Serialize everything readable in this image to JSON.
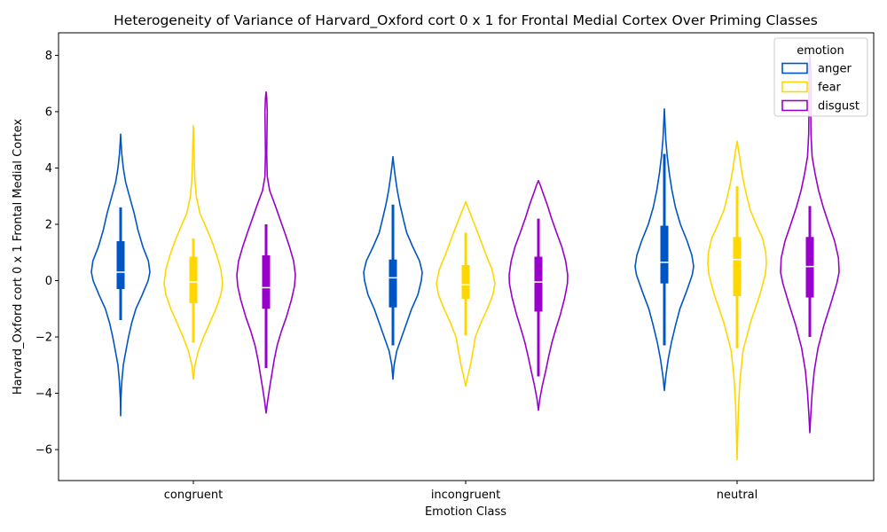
{
  "chart_data": {
    "type": "violin",
    "title": "Heterogeneity of Variance of Harvard_Oxford cort 0 x 1 for Frontal Medial Cortex Over Priming Classes",
    "xlabel": "Emotion Class",
    "ylabel": "Harvard_Oxford cort 0 x 1 Frontal Medial Cortex",
    "categories": [
      "congruent",
      "incongruent",
      "neutral"
    ],
    "ylim": [
      -7.1,
      8.8
    ],
    "yticks": [
      -6,
      -4,
      -2,
      0,
      2,
      4,
      6,
      8
    ],
    "ytick_labels": [
      "−6",
      "−4",
      "−2",
      "0",
      "2",
      "4",
      "6",
      "8"
    ],
    "grid": false,
    "legend": {
      "title": "emotion",
      "placement": "top-right",
      "entries": [
        "anger",
        "fear",
        "disgust"
      ]
    },
    "series": [
      {
        "name": "anger",
        "color": "#0055c4",
        "violins": [
          {
            "min": -4.8,
            "max": 5.2,
            "q1": -0.3,
            "median": 0.3,
            "q3": 1.4,
            "whisker_low": -1.4,
            "whisker_high": 2.6,
            "profile": [
              [
                -4.8,
                0.0
              ],
              [
                -4.2,
                0.01
              ],
              [
                -3.6,
                0.04
              ],
              [
                -3.0,
                0.09
              ],
              [
                -2.5,
                0.18
              ],
              [
                -2.0,
                0.27
              ],
              [
                -1.5,
                0.38
              ],
              [
                -1.0,
                0.52
              ],
              [
                -0.5,
                0.74
              ],
              [
                0.0,
                0.94
              ],
              [
                0.3,
                1.0
              ],
              [
                0.7,
                0.95
              ],
              [
                1.2,
                0.76
              ],
              [
                1.8,
                0.59
              ],
              [
                2.4,
                0.46
              ],
              [
                3.0,
                0.3
              ],
              [
                3.5,
                0.17
              ],
              [
                4.0,
                0.09
              ],
              [
                4.5,
                0.04
              ],
              [
                5.0,
                0.01
              ],
              [
                5.2,
                0.0
              ]
            ]
          },
          {
            "min": -3.5,
            "max": 4.4,
            "q1": -0.95,
            "median": 0.1,
            "q3": 0.75,
            "whisker_low": -2.3,
            "whisker_high": 2.7,
            "profile": [
              [
                -3.5,
                0.0
              ],
              [
                -3.0,
                0.04
              ],
              [
                -2.5,
                0.13
              ],
              [
                -2.0,
                0.3
              ],
              [
                -1.5,
                0.47
              ],
              [
                -1.0,
                0.64
              ],
              [
                -0.5,
                0.85
              ],
              [
                0.0,
                0.97
              ],
              [
                0.3,
                1.0
              ],
              [
                0.7,
                0.91
              ],
              [
                1.2,
                0.68
              ],
              [
                1.7,
                0.47
              ],
              [
                2.2,
                0.35
              ],
              [
                2.7,
                0.24
              ],
              [
                3.2,
                0.15
              ],
              [
                3.7,
                0.08
              ],
              [
                4.1,
                0.03
              ],
              [
                4.4,
                0.0
              ]
            ]
          },
          {
            "min": -3.9,
            "max": 6.1,
            "q1": -0.1,
            "median": 0.65,
            "q3": 1.95,
            "whisker_low": -2.3,
            "whisker_high": 4.5,
            "profile": [
              [
                -3.9,
                0.0
              ],
              [
                -3.4,
                0.05
              ],
              [
                -2.8,
                0.13
              ],
              [
                -2.2,
                0.24
              ],
              [
                -1.6,
                0.38
              ],
              [
                -1.0,
                0.53
              ],
              [
                -0.4,
                0.75
              ],
              [
                0.2,
                0.95
              ],
              [
                0.5,
                1.0
              ],
              [
                0.9,
                0.94
              ],
              [
                1.4,
                0.78
              ],
              [
                2.0,
                0.55
              ],
              [
                2.6,
                0.38
              ],
              [
                3.2,
                0.26
              ],
              [
                3.8,
                0.17
              ],
              [
                4.4,
                0.1
              ],
              [
                5.0,
                0.05
              ],
              [
                5.6,
                0.02
              ],
              [
                6.1,
                0.0
              ]
            ]
          }
        ]
      },
      {
        "name": "fear",
        "color": "#ffd700",
        "violins": [
          {
            "min": -3.5,
            "max": 5.5,
            "q1": -0.8,
            "median": -0.05,
            "q3": 0.85,
            "whisker_low": -2.2,
            "whisker_high": 1.5,
            "profile": [
              [
                -3.5,
                0.0
              ],
              [
                -3.0,
                0.05
              ],
              [
                -2.5,
                0.17
              ],
              [
                -2.0,
                0.35
              ],
              [
                -1.5,
                0.56
              ],
              [
                -1.0,
                0.77
              ],
              [
                -0.5,
                0.94
              ],
              [
                -0.1,
                1.0
              ],
              [
                0.4,
                0.94
              ],
              [
                0.9,
                0.8
              ],
              [
                1.4,
                0.63
              ],
              [
                1.9,
                0.43
              ],
              [
                2.4,
                0.22
              ],
              [
                3.0,
                0.1
              ],
              [
                3.6,
                0.05
              ],
              [
                4.2,
                0.03
              ],
              [
                4.8,
                0.02
              ],
              [
                5.2,
                0.01
              ],
              [
                5.5,
                0.0
              ]
            ]
          },
          {
            "min": -3.75,
            "max": 2.8,
            "q1": -0.65,
            "median": -0.15,
            "q3": 0.55,
            "whisker_low": -1.95,
            "whisker_high": 1.7,
            "profile": [
              [
                -3.75,
                0.0
              ],
              [
                -3.5,
                0.05
              ],
              [
                -3.0,
                0.16
              ],
              [
                -2.5,
                0.25
              ],
              [
                -2.0,
                0.33
              ],
              [
                -1.5,
                0.52
              ],
              [
                -1.0,
                0.74
              ],
              [
                -0.5,
                0.93
              ],
              [
                -0.1,
                1.0
              ],
              [
                0.4,
                0.9
              ],
              [
                0.9,
                0.7
              ],
              [
                1.4,
                0.52
              ],
              [
                1.9,
                0.34
              ],
              [
                2.4,
                0.15
              ],
              [
                2.8,
                0.0
              ]
            ]
          },
          {
            "min": -6.35,
            "max": 4.95,
            "q1": -0.55,
            "median": 0.75,
            "q3": 1.55,
            "whisker_low": -2.4,
            "whisker_high": 3.35,
            "profile": [
              [
                -6.35,
                0.0
              ],
              [
                -5.5,
                0.02
              ],
              [
                -4.5,
                0.05
              ],
              [
                -3.5,
                0.1
              ],
              [
                -2.5,
                0.2
              ],
              [
                -1.5,
                0.45
              ],
              [
                -0.5,
                0.78
              ],
              [
                0.2,
                0.96
              ],
              [
                0.6,
                1.0
              ],
              [
                1.0,
                0.98
              ],
              [
                1.5,
                0.87
              ],
              [
                2.0,
                0.65
              ],
              [
                2.5,
                0.45
              ],
              [
                3.0,
                0.33
              ],
              [
                3.5,
                0.22
              ],
              [
                4.0,
                0.14
              ],
              [
                4.5,
                0.07
              ],
              [
                4.95,
                0.0
              ]
            ]
          }
        ]
      },
      {
        "name": "disgust",
        "color": "#9900cc",
        "violins": [
          {
            "min": -4.7,
            "max": 6.7,
            "q1": -1.0,
            "median": -0.25,
            "q3": 0.9,
            "whisker_low": -3.1,
            "whisker_high": 2.0,
            "profile": [
              [
                -4.7,
                0.0
              ],
              [
                -4.3,
                0.05
              ],
              [
                -3.8,
                0.12
              ],
              [
                -3.3,
                0.2
              ],
              [
                -2.8,
                0.28
              ],
              [
                -2.3,
                0.38
              ],
              [
                -1.8,
                0.52
              ],
              [
                -1.3,
                0.69
              ],
              [
                -0.7,
                0.86
              ],
              [
                -0.2,
                0.97
              ],
              [
                0.2,
                1.0
              ],
              [
                0.7,
                0.94
              ],
              [
                1.2,
                0.8
              ],
              [
                1.7,
                0.64
              ],
              [
                2.2,
                0.47
              ],
              [
                2.7,
                0.3
              ],
              [
                3.2,
                0.12
              ],
              [
                3.7,
                0.04
              ],
              [
                4.5,
                0.02
              ],
              [
                5.3,
                0.03
              ],
              [
                6.0,
                0.04
              ],
              [
                6.5,
                0.02
              ],
              [
                6.7,
                0.0
              ]
            ]
          },
          {
            "min": -4.6,
            "max": 3.55,
            "q1": -1.1,
            "median": -0.05,
            "q3": 0.85,
            "whisker_low": -3.4,
            "whisker_high": 2.2,
            "profile": [
              [
                -4.6,
                0.0
              ],
              [
                -4.2,
                0.05
              ],
              [
                -3.7,
                0.14
              ],
              [
                -3.2,
                0.25
              ],
              [
                -2.7,
                0.35
              ],
              [
                -2.2,
                0.46
              ],
              [
                -1.7,
                0.6
              ],
              [
                -1.2,
                0.75
              ],
              [
                -0.6,
                0.9
              ],
              [
                -0.1,
                0.99
              ],
              [
                0.2,
                1.0
              ],
              [
                0.7,
                0.93
              ],
              [
                1.2,
                0.8
              ],
              [
                1.7,
                0.62
              ],
              [
                2.2,
                0.45
              ],
              [
                2.7,
                0.3
              ],
              [
                3.1,
                0.16
              ],
              [
                3.4,
                0.06
              ],
              [
                3.55,
                0.0
              ]
            ]
          },
          {
            "min": -5.4,
            "max": 8.1,
            "q1": -0.6,
            "median": 0.5,
            "q3": 1.55,
            "whisker_low": -2.0,
            "whisker_high": 2.65,
            "profile": [
              [
                -5.4,
                0.0
              ],
              [
                -4.8,
                0.03
              ],
              [
                -4.0,
                0.08
              ],
              [
                -3.2,
                0.15
              ],
              [
                -2.4,
                0.28
              ],
              [
                -1.6,
                0.48
              ],
              [
                -0.8,
                0.72
              ],
              [
                -0.1,
                0.92
              ],
              [
                0.3,
                1.0
              ],
              [
                0.8,
                0.98
              ],
              [
                1.4,
                0.85
              ],
              [
                2.0,
                0.65
              ],
              [
                2.6,
                0.46
              ],
              [
                3.2,
                0.3
              ],
              [
                3.8,
                0.18
              ],
              [
                4.4,
                0.08
              ],
              [
                5.2,
                0.04
              ],
              [
                6.0,
                0.03
              ],
              [
                6.8,
                0.03
              ],
              [
                7.5,
                0.03
              ],
              [
                8.1,
                0.0
              ]
            ]
          }
        ]
      }
    ]
  }
}
